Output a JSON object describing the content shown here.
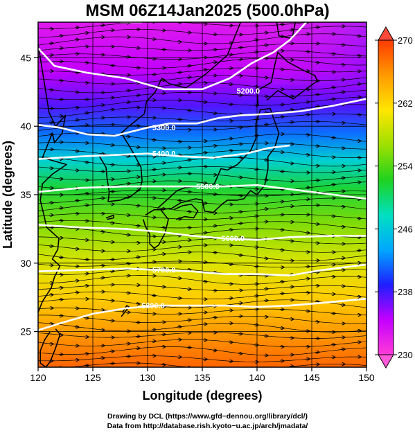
{
  "title": "MSM 06Z14Jan2025 (500.0hPa)",
  "map": {
    "xlabel": "Longitude (degrees)",
    "ylabel": "Latitude  (degrees)",
    "xlim": [
      120,
      150
    ],
    "ylim": [
      22.4,
      47.6
    ],
    "x_ticks": [
      120,
      125,
      130,
      135,
      140,
      145,
      150
    ],
    "y_ticks": [
      25,
      30,
      35,
      40,
      45
    ]
  },
  "colorbar": {
    "min": 230,
    "max": 270,
    "labels": [
      230,
      238,
      246,
      254,
      262,
      270
    ],
    "colors": [
      "#ff3bd8",
      "#c400ff",
      "#1e1eff",
      "#00a7ff",
      "#00e0c0",
      "#1fd21f",
      "#9ee000",
      "#ffe600",
      "#ff9a00",
      "#ff3a00"
    ]
  },
  "chart_data": {
    "type": "contour",
    "temperature_field": "shaded, approx 232 (north) to 268 (south)",
    "contours": [
      {
        "label": "5200.0",
        "points": [
          [
            120,
            45.7
          ],
          [
            121.5,
            44.4
          ],
          [
            124.5,
            43.9
          ],
          [
            128,
            43.5
          ],
          [
            131.5,
            42.7
          ],
          [
            135,
            42.7
          ],
          [
            137.5,
            43.5
          ],
          [
            139.5,
            44.6
          ],
          [
            141.5,
            45.4
          ],
          [
            143,
            46.3
          ],
          [
            144.5,
            47.6
          ]
        ]
      },
      {
        "label": "5200.0",
        "points": [
          [
            127.5,
            47.6
          ],
          [
            128.5,
            47.6
          ],
          [
            129.5,
            47.6
          ]
        ]
      },
      {
        "label": "5300.0",
        "points": [
          [
            120,
            40.1
          ],
          [
            122,
            39.9
          ],
          [
            124.5,
            39.4
          ],
          [
            127,
            39.3
          ],
          [
            130,
            39.9
          ],
          [
            132,
            40.2
          ],
          [
            134.5,
            40.2
          ],
          [
            136.5,
            40.6
          ],
          [
            138.5,
            40.8
          ],
          [
            141,
            40.9
          ],
          [
            144,
            41.1
          ],
          [
            147,
            41.5
          ],
          [
            150,
            42.0
          ]
        ]
      },
      {
        "label": "5400.0",
        "points": [
          [
            120,
            37.6
          ],
          [
            124,
            37.8
          ],
          [
            127,
            37.9
          ],
          [
            130,
            38.0
          ],
          [
            133,
            37.8
          ],
          [
            136,
            37.7
          ],
          [
            139,
            38.0
          ],
          [
            141,
            38.4
          ],
          [
            143,
            38.6
          ]
        ]
      },
      {
        "label": "5500.0",
        "points": [
          [
            120,
            35.2
          ],
          [
            124,
            35.5
          ],
          [
            128,
            35.6
          ],
          [
            132,
            35.6
          ],
          [
            134.5,
            35.6
          ],
          [
            137,
            35.6
          ],
          [
            140,
            35.7
          ],
          [
            143,
            35.4
          ],
          [
            147,
            35.0
          ],
          [
            150,
            34.7
          ]
        ]
      },
      {
        "label": "5600.0",
        "points": [
          [
            120,
            32.8
          ],
          [
            124,
            32.6
          ],
          [
            128,
            32.5
          ],
          [
            131,
            32.3
          ],
          [
            134,
            32.0
          ],
          [
            137,
            31.8
          ],
          [
            140,
            31.7
          ],
          [
            143,
            31.9
          ],
          [
            147,
            32.0
          ],
          [
            150,
            32.0
          ]
        ]
      },
      {
        "label": "5700.0",
        "points": [
          [
            120,
            29.4
          ],
          [
            124,
            29.5
          ],
          [
            128,
            29.6
          ],
          [
            131,
            29.5
          ],
          [
            134,
            29.4
          ],
          [
            137,
            29.2
          ],
          [
            140,
            29.2
          ],
          [
            143,
            29.1
          ],
          [
            146,
            29.5
          ],
          [
            150,
            29.9
          ]
        ]
      },
      {
        "label": "5800.0",
        "points": [
          [
            120,
            25.1
          ],
          [
            122,
            25.6
          ],
          [
            125,
            26.3
          ],
          [
            128,
            26.7
          ],
          [
            131,
            26.9
          ],
          [
            134,
            26.9
          ],
          [
            137,
            26.9
          ],
          [
            140,
            26.8
          ],
          [
            143,
            26.9
          ],
          [
            146,
            27.1
          ],
          [
            150,
            27.4
          ]
        ]
      }
    ],
    "contour_labels": [
      {
        "text": "5200.0",
        "lon": 139.2,
        "lat": 42.6
      },
      {
        "text": "5300.0",
        "lon": 131.5,
        "lat": 39.9
      },
      {
        "text": "5400.0",
        "lon": 131.5,
        "lat": 38.0
      },
      {
        "text": "5500.0",
        "lon": 135.5,
        "lat": 35.6
      },
      {
        "text": "5600.0",
        "lon": 137.8,
        "lat": 31.8
      },
      {
        "text": "5700.0",
        "lon": 131.5,
        "lat": 29.5
      },
      {
        "text": "5800.0",
        "lon": 130.5,
        "lat": 26.9
      }
    ],
    "coastlines": [
      {
        "name": "korea",
        "points": [
          [
            125.6,
            37.8
          ],
          [
            126.2,
            37.0
          ],
          [
            126.3,
            36.2
          ],
          [
            126.5,
            35.2
          ],
          [
            126.4,
            34.5
          ],
          [
            127.5,
            34.6
          ],
          [
            128.5,
            34.9
          ],
          [
            129.3,
            35.4
          ],
          [
            129.5,
            36.0
          ],
          [
            129.4,
            37.0
          ],
          [
            128.8,
            37.9
          ],
          [
            128.3,
            38.6
          ],
          [
            127.6,
            39.5
          ],
          [
            128.3,
            40.0
          ],
          [
            129.7,
            40.9
          ],
          [
            129.9,
            41.8
          ],
          [
            130.7,
            42.5
          ],
          [
            131.3,
            43.5
          ],
          [
            132.0,
            43.1
          ],
          [
            133.5,
            42.8
          ],
          [
            135.3,
            43.8
          ],
          [
            137.3,
            45.2
          ],
          [
            138.5,
            47.6
          ]
        ]
      },
      {
        "name": "china",
        "points": [
          [
            120,
            46.0
          ],
          [
            121.0,
            41.0
          ],
          [
            121.6,
            40.0
          ],
          [
            122.5,
            40.8
          ],
          [
            122.2,
            39.5
          ],
          [
            121.5,
            38.8
          ],
          [
            121.3,
            39.5
          ],
          [
            120.4,
            37.7
          ],
          [
            122.6,
            37.2
          ],
          [
            121.3,
            36.5
          ],
          [
            120.4,
            35.8
          ],
          [
            120.2,
            34.6
          ],
          [
            120.8,
            32.6
          ],
          [
            121.9,
            31.8
          ],
          [
            121.8,
            31.0
          ],
          [
            121.3,
            30.3
          ],
          [
            122.0,
            29.8
          ],
          [
            121.5,
            29.0
          ],
          [
            121.2,
            28.2
          ],
          [
            120.4,
            27.2
          ],
          [
            119.8,
            26.0
          ],
          [
            119.5,
            25.2
          ]
        ]
      },
      {
        "name": "taiwan",
        "points": [
          [
            121.6,
            25.2
          ],
          [
            122.0,
            24.8
          ],
          [
            121.6,
            23.8
          ],
          [
            121.1,
            22.8
          ],
          [
            120.7,
            22.4
          ],
          [
            120.2,
            22.7
          ],
          [
            120.2,
            23.6
          ],
          [
            120.6,
            24.4
          ],
          [
            121.1,
            25.0
          ]
        ]
      },
      {
        "name": "kyushu",
        "points": [
          [
            129.8,
            33.5
          ],
          [
            130.6,
            33.9
          ],
          [
            131.2,
            33.9
          ],
          [
            131.9,
            33.2
          ],
          [
            131.6,
            32.2
          ],
          [
            131.0,
            31.3
          ],
          [
            130.6,
            31.1
          ],
          [
            130.2,
            31.4
          ],
          [
            130.2,
            32.1
          ],
          [
            129.8,
            32.7
          ],
          [
            129.6,
            33.2
          ]
        ]
      },
      {
        "name": "shikoku",
        "points": [
          [
            132.6,
            33.2
          ],
          [
            133.4,
            33.4
          ],
          [
            134.2,
            33.3
          ],
          [
            134.6,
            33.8
          ],
          [
            134.0,
            34.3
          ],
          [
            133.2,
            34.2
          ],
          [
            132.4,
            33.9
          ]
        ]
      },
      {
        "name": "honshu",
        "points": [
          [
            130.9,
            34.0
          ],
          [
            131.6,
            34.5
          ],
          [
            132.7,
            35.3
          ],
          [
            133.4,
            35.5
          ],
          [
            134.4,
            35.6
          ],
          [
            135.4,
            35.6
          ],
          [
            136.1,
            35.8
          ],
          [
            136.7,
            36.9
          ],
          [
            137.3,
            36.8
          ],
          [
            138.2,
            37.2
          ],
          [
            139.4,
            38.2
          ],
          [
            139.9,
            39.1
          ],
          [
            139.9,
            40.2
          ],
          [
            140.3,
            41.2
          ],
          [
            141.2,
            41.3
          ],
          [
            141.5,
            40.6
          ],
          [
            142.0,
            39.5
          ],
          [
            141.6,
            38.4
          ],
          [
            141.0,
            37.8
          ],
          [
            141.0,
            36.9
          ],
          [
            140.7,
            35.7
          ],
          [
            140.0,
            35.0
          ],
          [
            139.4,
            35.3
          ],
          [
            138.8,
            34.7
          ],
          [
            138.2,
            34.6
          ],
          [
            137.3,
            34.6
          ],
          [
            136.8,
            34.3
          ],
          [
            136.0,
            33.7
          ],
          [
            135.2,
            33.8
          ],
          [
            135.0,
            34.6
          ],
          [
            134.4,
            34.7
          ],
          [
            133.0,
            34.4
          ],
          [
            132.2,
            34.0
          ],
          [
            131.0,
            33.9
          ]
        ]
      },
      {
        "name": "hokkaido",
        "points": [
          [
            140.1,
            41.5
          ],
          [
            140.0,
            42.6
          ],
          [
            141.3,
            43.2
          ],
          [
            141.6,
            44.4
          ],
          [
            141.9,
            45.4
          ],
          [
            142.8,
            44.7
          ],
          [
            144.2,
            44.1
          ],
          [
            145.3,
            43.7
          ],
          [
            145.5,
            43.3
          ],
          [
            144.8,
            42.9
          ],
          [
            143.3,
            42.0
          ],
          [
            141.9,
            42.6
          ],
          [
            140.9,
            41.9
          ]
        ]
      },
      {
        "name": "sakhalin",
        "points": [
          [
            141.8,
            47.6
          ],
          [
            142.0,
            46.6
          ],
          [
            143.2,
            46.4
          ],
          [
            143.5,
            47.6
          ]
        ]
      },
      {
        "name": "jeju",
        "points": [
          [
            126.2,
            33.3
          ],
          [
            126.9,
            33.5
          ],
          [
            126.9,
            33.3
          ],
          [
            126.3,
            33.2
          ]
        ]
      },
      {
        "name": "okinawa",
        "points": [
          [
            127.6,
            26.1
          ],
          [
            128.3,
            26.8
          ],
          [
            128.1,
            26.9
          ],
          [
            127.7,
            26.4
          ]
        ]
      }
    ]
  },
  "credits": [
    "Drawing by DCL (https://www.gfd−dennou.org/library/dcl/)",
    "Data from http://database.rish.kyoto−u.ac.jp/arch/jmadata/"
  ]
}
